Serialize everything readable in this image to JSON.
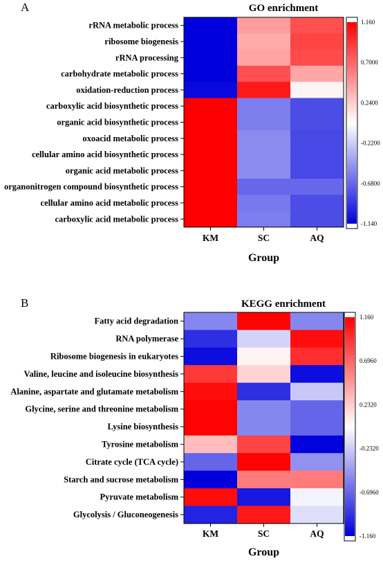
{
  "chart_data": [
    {
      "type": "heatmap",
      "panel_label": "A",
      "title": "GO enrichment",
      "xlabel": "Group",
      "columns": [
        "KM",
        "SC",
        "AQ"
      ],
      "rows": [
        "rRNA metabolic process",
        "ribosome biogenesis",
        "rRNA processing",
        "carbohydrate metabolic process",
        "oxidation-reduction process",
        "carboxylic acid biosynthetic process",
        "organic acid biosynthetic process",
        "oxoacid metabolic process",
        "cellular amino acid biosynthetic process",
        "organic acid metabolic process",
        "organonitrogen compound biosynthetic process",
        "cellular amino acid metabolic process",
        "carboxylic acid metabolic process"
      ],
      "values": [
        [
          -1.15,
          0.45,
          0.8
        ],
        [
          -1.15,
          0.38,
          0.85
        ],
        [
          -1.15,
          0.42,
          0.82
        ],
        [
          -1.14,
          0.8,
          0.4
        ],
        [
          -1.1,
          1.05,
          0.05
        ],
        [
          1.16,
          -0.58,
          -0.8
        ],
        [
          1.16,
          -0.58,
          -0.8
        ],
        [
          1.16,
          -0.52,
          -0.82
        ],
        [
          1.16,
          -0.52,
          -0.82
        ],
        [
          1.16,
          -0.52,
          -0.82
        ],
        [
          1.16,
          -0.68,
          -0.68
        ],
        [
          1.16,
          -0.6,
          -0.8
        ],
        [
          1.16,
          -0.58,
          -0.8
        ]
      ],
      "colorbar": {
        "min": -1.14,
        "max": 1.16,
        "ticks": [
          "1.160",
          "0.7000",
          "0.2400",
          "-0.2200",
          "-0.6800",
          "-1.140"
        ],
        "tick_values": [
          1.16,
          0.7,
          0.24,
          -0.22,
          -0.68,
          -1.14
        ]
      },
      "colors": {
        "low": "#0000dd",
        "mid": "#ffffff",
        "high": "#ff0000"
      }
    },
    {
      "type": "heatmap",
      "panel_label": "B",
      "title": "KEGG enrichment",
      "xlabel": "Group",
      "columns": [
        "KM",
        "SC",
        "AQ"
      ],
      "rows": [
        "Fatty acid degradation",
        "RNA polymerase",
        "Ribosome biogenesis in eukaryotes",
        "Valine, leucine and isoleucine biosynthesis",
        "Alanine, aspartate and glutamate metabolism",
        "Glycine, serine and threonine metabolism",
        "Lysine biosynthesis",
        "Tyrosine metabolism",
        "Citrate cycle (TCA cycle)",
        "Starch and sucrose metabolism",
        "Pyruvate metabolism",
        "Glycolysis / Gluconeogenesis"
      ],
      "values": [
        [
          -0.55,
          1.15,
          -0.55
        ],
        [
          -0.95,
          -0.2,
          1.1
        ],
        [
          -1.1,
          0.05,
          0.95
        ],
        [
          0.9,
          0.2,
          -1.1
        ],
        [
          1.1,
          -0.95,
          -0.25
        ],
        [
          1.15,
          -0.55,
          -0.7
        ],
        [
          1.15,
          -0.55,
          -0.7
        ],
        [
          0.3,
          0.85,
          -1.15
        ],
        [
          -0.7,
          1.15,
          -0.5
        ],
        [
          -1.16,
          0.6,
          0.6
        ],
        [
          1.1,
          -1.05,
          -0.05
        ],
        [
          -1.0,
          1.05,
          -0.15
        ]
      ],
      "colorbar": {
        "min": -1.16,
        "max": 1.16,
        "ticks": [
          "1.160",
          "0.6960",
          "0.2320",
          "-0.2320",
          "-0.6960",
          "-1.160"
        ],
        "tick_values": [
          1.16,
          0.696,
          0.232,
          -0.232,
          -0.696,
          -1.16
        ]
      },
      "colors": {
        "low": "#0000dd",
        "mid": "#ffffff",
        "high": "#ff0000"
      }
    }
  ]
}
